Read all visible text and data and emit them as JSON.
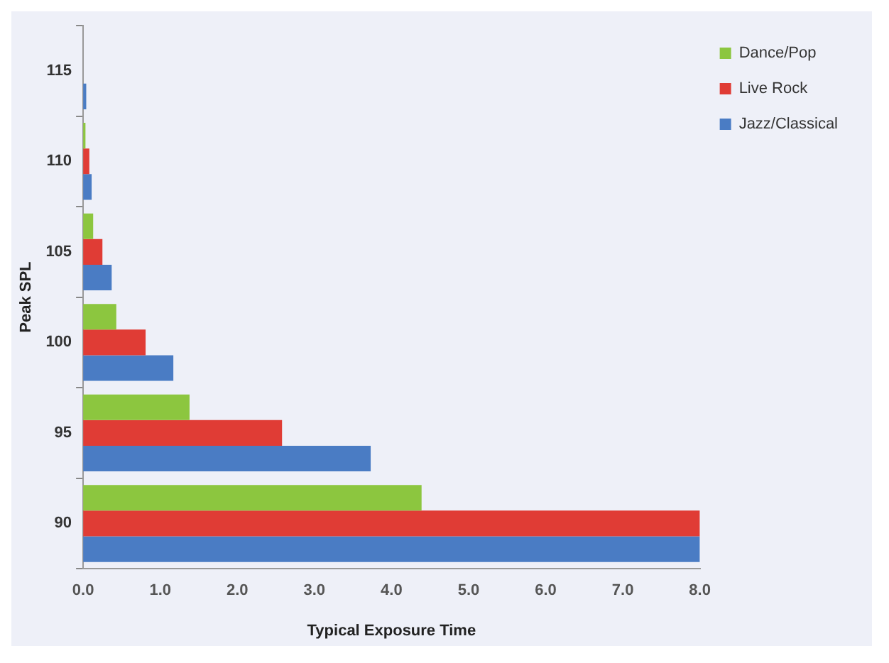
{
  "chart_data": {
    "type": "bar",
    "orientation": "horizontal",
    "xlabel": "Typical Exposure Time",
    "ylabel": "Peak SPL",
    "categories": [
      "115",
      "110",
      "105",
      "100",
      "95",
      "90"
    ],
    "series": [
      {
        "name": "Dance/Pop",
        "color": "#8cc63f",
        "values": [
          null,
          0.03,
          0.13,
          0.43,
          1.38,
          4.39
        ]
      },
      {
        "name": "Live Rock",
        "color": "#e03c35",
        "values": [
          null,
          0.08,
          0.25,
          0.81,
          2.58,
          8.0
        ]
      },
      {
        "name": "Jazz/Classical",
        "color": "#4a7cc4",
        "values": [
          0.04,
          0.11,
          0.37,
          1.17,
          3.73,
          8.0
        ]
      }
    ],
    "xlim": [
      0,
      8
    ],
    "xticks": [
      {
        "value": 0,
        "label": "0.0"
      },
      {
        "value": 1,
        "label": "1.0"
      },
      {
        "value": 2,
        "label": "2.0"
      },
      {
        "value": 3,
        "label": "3.0"
      },
      {
        "value": 4,
        "label": "4.0"
      },
      {
        "value": 5,
        "label": "5.0"
      },
      {
        "value": 6,
        "label": "6.0"
      },
      {
        "value": 7,
        "label": "7.0"
      },
      {
        "value": 8,
        "label": "8.0"
      }
    ],
    "grid": false,
    "legend": "top right"
  }
}
